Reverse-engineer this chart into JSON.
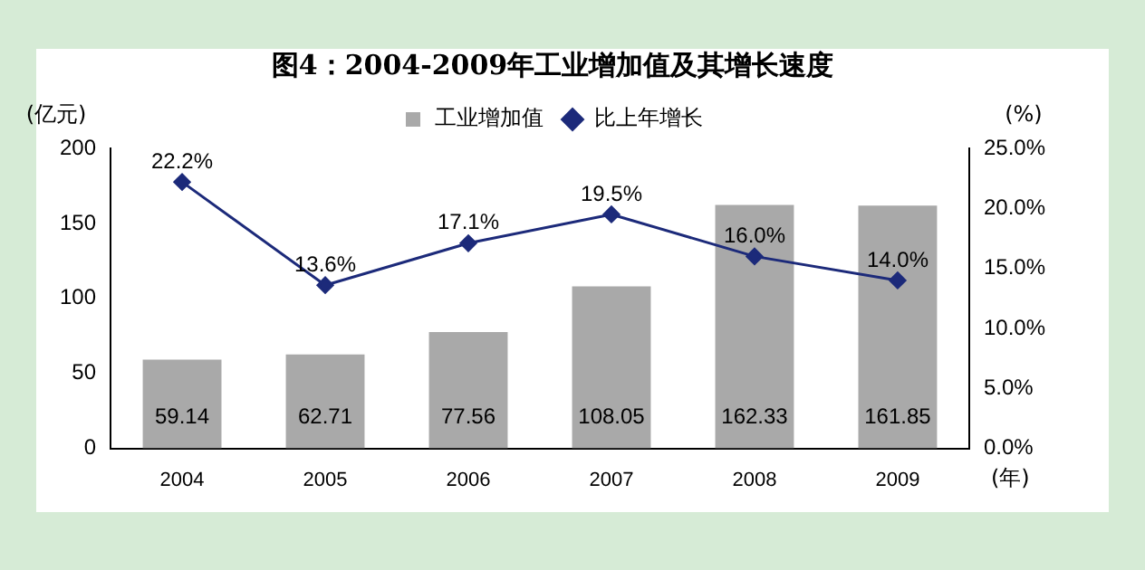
{
  "chart_data": {
    "type": "bar",
    "title": "图4：2004-2009年工业增加值及其增长速度",
    "categories": [
      "2004",
      "2005",
      "2006",
      "2007",
      "2008",
      "2009"
    ],
    "series": [
      {
        "name": "工业增加值",
        "color": "#a9a9a9",
        "values": [
          59.14,
          62.71,
          77.56,
          108.05,
          162.33,
          161.85
        ],
        "value_labels": [
          "59.14",
          "62.71",
          "77.56",
          "108.05",
          "162.33",
          "161.85"
        ]
      },
      {
        "name": "比上年增长",
        "type": "line",
        "axis": "y2",
        "color": "#1c2a7a",
        "marker": "diamond",
        "values": [
          22.2,
          13.6,
          17.1,
          19.5,
          16.0,
          14.0
        ],
        "value_labels": [
          "22.2%",
          "13.6%",
          "17.1%",
          "19.5%",
          "16.0%",
          "14.0%"
        ]
      }
    ],
    "ylim": [
      0,
      200
    ],
    "yticks": [
      0,
      50,
      100,
      150,
      200
    ],
    "y2lim": [
      0,
      25
    ],
    "y2ticks": [
      {
        "value": 0,
        "label": "0.0%"
      },
      {
        "value": 5,
        "label": "5.0%"
      },
      {
        "value": 10,
        "label": "10.0%"
      },
      {
        "value": 15,
        "label": "15.0%"
      },
      {
        "value": 20,
        "label": "20.0%"
      },
      {
        "value": 25,
        "label": "25.0%"
      }
    ],
    "ylabel": "(亿元)",
    "y2label": "(%)",
    "xlabel": "(年)",
    "legend": "top"
  }
}
